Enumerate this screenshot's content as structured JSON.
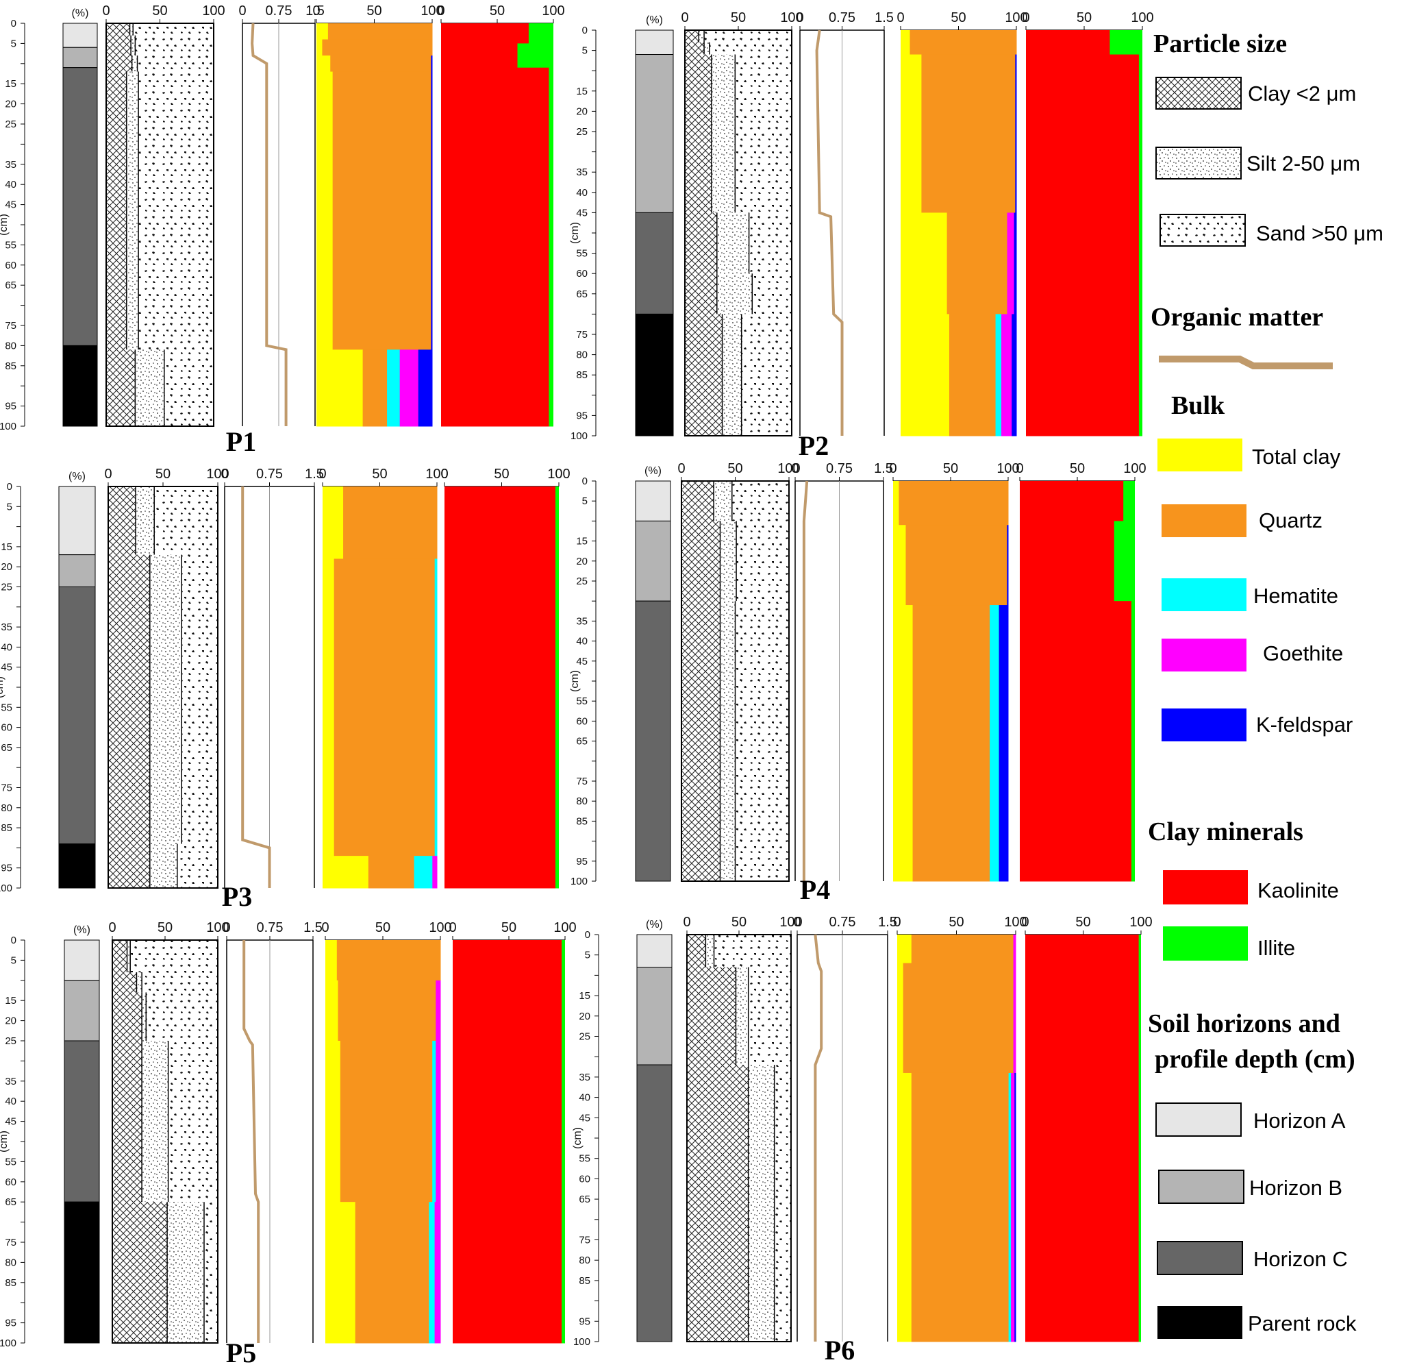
{
  "colors": {
    "horizon_A": "#e6e6e6",
    "horizon_B": "#b4b4b4",
    "horizon_C": "#666666",
    "parent_rock": "#000000",
    "organic_matter": "#c09a6b",
    "total_clay": "#ffff00",
    "quartz": "#f7941d",
    "hematite": "#00ffff",
    "goethite": "#ff00ff",
    "k_feldspar": "#0000ff",
    "kaolinite": "#ff0000",
    "illite": "#00ff00"
  },
  "axes": {
    "percent_unit": "(%)",
    "depth_unit": "(cm)",
    "percent_ticks": [
      "0",
      "50",
      "100"
    ],
    "om_ticks": [
      "0",
      "0.75",
      "1.5"
    ],
    "depth_ticks": [
      "0",
      "5",
      "15",
      "20",
      "25",
      "35",
      "40",
      "45",
      "55",
      "60",
      "65",
      "75",
      "80",
      "85",
      "95",
      "100"
    ]
  },
  "legend": {
    "particle_size": {
      "title": "Particle size",
      "items": [
        {
          "key": "clay",
          "label": "Clay <2 μm",
          "pattern": "crosshatch"
        },
        {
          "key": "silt",
          "label": "Silt 2-50 μm",
          "pattern": "fine-dots"
        },
        {
          "key": "sand",
          "label": "Sand >50 μm",
          "pattern": "coarse-dots"
        }
      ]
    },
    "organic_matter": {
      "title": "Organic matter"
    },
    "bulk": {
      "title": "Bulk",
      "items": [
        {
          "key": "total_clay",
          "label": "Total clay",
          "color": "#ffff00"
        },
        {
          "key": "quartz",
          "label": "Quartz",
          "color": "#f7941d"
        },
        {
          "key": "hematite",
          "label": "Hematite",
          "color": "#00ffff"
        },
        {
          "key": "goethite",
          "label": "Goethite",
          "color": "#ff00ff"
        },
        {
          "key": "k_feldspar",
          "label": "K-feldspar",
          "color": "#0000ff"
        }
      ]
    },
    "clay_minerals": {
      "title": "Clay minerals",
      "items": [
        {
          "key": "kaolinite",
          "label": "Kaolinite",
          "color": "#ff0000"
        },
        {
          "key": "illite",
          "label": "Illite",
          "color": "#00ff00"
        }
      ]
    },
    "soil_horizons": {
      "title_line1": "Soil horizons and",
      "title_line2": "profile depth (cm)",
      "items": [
        {
          "key": "A",
          "label": "Horizon A",
          "color": "#e6e6e6"
        },
        {
          "key": "B",
          "label": "Horizon B",
          "color": "#b4b4b4"
        },
        {
          "key": "C",
          "label": "Horizon C",
          "color": "#666666"
        },
        {
          "key": "R",
          "label": "Parent rock",
          "color": "#000000"
        }
      ]
    }
  },
  "chart_data": [
    {
      "type": "area",
      "profile": "P1",
      "depth_range_cm": [
        0,
        100
      ],
      "horizons": [
        {
          "key": "A",
          "from": 0,
          "to": 6
        },
        {
          "key": "B",
          "from": 6,
          "to": 11
        },
        {
          "key": "C",
          "from": 11,
          "to": 80
        },
        {
          "key": "R",
          "from": 80,
          "to": 100
        }
      ],
      "particle_size": [
        {
          "from": 0,
          "to": 3,
          "clay": 22,
          "silt": 3
        },
        {
          "from": 3,
          "to": 8,
          "clay": 23,
          "silt": 4
        },
        {
          "from": 8,
          "to": 12,
          "clay": 24,
          "silt": 5
        },
        {
          "from": 12,
          "to": 81,
          "clay": 19,
          "silt": 11
        },
        {
          "from": 81,
          "to": 100,
          "clay": 27,
          "silt": 27
        }
      ],
      "organic_matter": [
        [
          0,
          0.22
        ],
        [
          5,
          0.2
        ],
        [
          8,
          0.22
        ],
        [
          10,
          0.5
        ],
        [
          80,
          0.5
        ],
        [
          81,
          0.9
        ],
        [
          100,
          0.9
        ]
      ],
      "bulk": [
        {
          "from": 0,
          "to": 4,
          "total_clay": 10,
          "quartz": 90,
          "hematite": 0,
          "goethite": 0,
          "k_feldspar": 0
        },
        {
          "from": 4,
          "to": 8,
          "total_clay": 5,
          "quartz": 95,
          "hematite": 0,
          "goethite": 0,
          "k_feldspar": 0
        },
        {
          "from": 8,
          "to": 12,
          "total_clay": 12,
          "quartz": 87,
          "hematite": 0,
          "goethite": 0,
          "k_feldspar": 1
        },
        {
          "from": 12,
          "to": 81,
          "total_clay": 14,
          "quartz": 85,
          "hematite": 0,
          "goethite": 0,
          "k_feldspar": 1
        },
        {
          "from": 81,
          "to": 100,
          "total_clay": 40,
          "quartz": 21,
          "hematite": 11,
          "goethite": 16,
          "k_feldspar": 12
        }
      ],
      "clay_minerals": [
        {
          "from": 0,
          "to": 5,
          "kaolinite": 78,
          "illite": 22
        },
        {
          "from": 5,
          "to": 11,
          "kaolinite": 68,
          "illite": 32
        },
        {
          "from": 11,
          "to": 100,
          "kaolinite": 96,
          "illite": 4
        }
      ]
    },
    {
      "type": "area",
      "profile": "P2",
      "depth_range_cm": [
        0,
        100
      ],
      "horizons": [
        {
          "key": "A",
          "from": 0,
          "to": 6
        },
        {
          "key": "B",
          "from": 6,
          "to": 45
        },
        {
          "key": "C",
          "from": 45,
          "to": 70
        },
        {
          "key": "R",
          "from": 70,
          "to": 100
        }
      ],
      "particle_size": [
        {
          "from": 0,
          "to": 3,
          "clay": 13,
          "silt": 5
        },
        {
          "from": 3,
          "to": 6,
          "clay": 18,
          "silt": 5
        },
        {
          "from": 6,
          "to": 45,
          "clay": 25,
          "silt": 22
        },
        {
          "from": 45,
          "to": 60,
          "clay": 30,
          "silt": 30
        },
        {
          "from": 60,
          "to": 70,
          "clay": 30,
          "silt": 33
        },
        {
          "from": 70,
          "to": 100,
          "clay": 35,
          "silt": 18
        }
      ],
      "organic_matter": [
        [
          0,
          0.35
        ],
        [
          5,
          0.3
        ],
        [
          45,
          0.35
        ],
        [
          46,
          0.55
        ],
        [
          70,
          0.6
        ],
        [
          72,
          0.75
        ],
        [
          100,
          0.75
        ]
      ],
      "bulk": [
        {
          "from": 0,
          "to": 6,
          "total_clay": 8,
          "quartz": 92,
          "hematite": 0,
          "goethite": 0,
          "k_feldspar": 0
        },
        {
          "from": 6,
          "to": 45,
          "total_clay": 18,
          "quartz": 81,
          "hematite": 0,
          "goethite": 0,
          "k_feldspar": 1
        },
        {
          "from": 45,
          "to": 70,
          "total_clay": 40,
          "quartz": 52,
          "hematite": 0,
          "goethite": 6,
          "k_feldspar": 2
        },
        {
          "from": 70,
          "to": 100,
          "total_clay": 42,
          "quartz": 40,
          "hematite": 5,
          "goethite": 9,
          "k_feldspar": 4
        }
      ],
      "clay_minerals": [
        {
          "from": 0,
          "to": 6,
          "kaolinite": 72,
          "illite": 28
        },
        {
          "from": 6,
          "to": 100,
          "kaolinite": 97,
          "illite": 3
        }
      ]
    },
    {
      "type": "area",
      "profile": "P3",
      "depth_range_cm": [
        0,
        100
      ],
      "horizons": [
        {
          "key": "A",
          "from": 0,
          "to": 17
        },
        {
          "key": "B",
          "from": 17,
          "to": 25
        },
        {
          "key": "C",
          "from": 25,
          "to": 89
        },
        {
          "key": "R",
          "from": 89,
          "to": 100
        }
      ],
      "particle_size": [
        {
          "from": 0,
          "to": 17,
          "clay": 25,
          "silt": 17
        },
        {
          "from": 17,
          "to": 89,
          "clay": 38,
          "silt": 29
        },
        {
          "from": 89,
          "to": 100,
          "clay": 38,
          "silt": 25
        }
      ],
      "organic_matter": [
        [
          0,
          0.3
        ],
        [
          88,
          0.3
        ],
        [
          90,
          0.75
        ],
        [
          100,
          0.75
        ]
      ],
      "bulk": [
        {
          "from": 0,
          "to": 18,
          "total_clay": 18,
          "quartz": 82,
          "hematite": 0,
          "goethite": 0,
          "k_feldspar": 0
        },
        {
          "from": 18,
          "to": 92,
          "total_clay": 10,
          "quartz": 88,
          "hematite": 2,
          "goethite": 0,
          "k_feldspar": 0
        },
        {
          "from": 92,
          "to": 100,
          "total_clay": 40,
          "quartz": 40,
          "hematite": 16,
          "goethite": 4,
          "k_feldspar": 0
        }
      ],
      "clay_minerals": [
        {
          "from": 0,
          "to": 100,
          "kaolinite": 97,
          "illite": 3
        }
      ]
    },
    {
      "type": "area",
      "profile": "P4",
      "depth_range_cm": [
        0,
        100
      ],
      "horizons": [
        {
          "key": "A",
          "from": 0,
          "to": 10
        },
        {
          "key": "B",
          "from": 10,
          "to": 30
        },
        {
          "key": "C",
          "from": 30,
          "to": 100
        }
      ],
      "particle_size": [
        {
          "from": 0,
          "to": 10,
          "clay": 30,
          "silt": 17
        },
        {
          "from": 10,
          "to": 30,
          "clay": 36,
          "silt": 15
        },
        {
          "from": 30,
          "to": 100,
          "clay": 36,
          "silt": 14
        }
      ],
      "organic_matter": [
        [
          0,
          0.2
        ],
        [
          10,
          0.15
        ],
        [
          13,
          0.15
        ],
        [
          100,
          0.15
        ]
      ],
      "bulk": [
        {
          "from": 0,
          "to": 11,
          "total_clay": 5,
          "quartz": 95,
          "hematite": 0,
          "goethite": 0,
          "k_feldspar": 0
        },
        {
          "from": 11,
          "to": 31,
          "total_clay": 11,
          "quartz": 88,
          "hematite": 0,
          "goethite": 0,
          "k_feldspar": 1
        },
        {
          "from": 31,
          "to": 100,
          "total_clay": 17,
          "quartz": 67,
          "hematite": 8,
          "goethite": 0,
          "k_feldspar": 8
        }
      ],
      "clay_minerals": [
        {
          "from": 0,
          "to": 10,
          "kaolinite": 90,
          "illite": 10
        },
        {
          "from": 10,
          "to": 30,
          "kaolinite": 82,
          "illite": 18
        },
        {
          "from": 30,
          "to": 100,
          "kaolinite": 97,
          "illite": 3
        }
      ]
    },
    {
      "type": "area",
      "profile": "P5",
      "depth_range_cm": [
        0,
        100
      ],
      "horizons": [
        {
          "key": "A",
          "from": 0,
          "to": 10
        },
        {
          "key": "B",
          "from": 10,
          "to": 25
        },
        {
          "key": "C",
          "from": 25,
          "to": 65
        },
        {
          "key": "R",
          "from": 65,
          "to": 100
        }
      ],
      "particle_size": [
        {
          "from": 0,
          "to": 8,
          "clay": 14,
          "silt": 3
        },
        {
          "from": 8,
          "to": 13,
          "clay": 23,
          "silt": 5
        },
        {
          "from": 13,
          "to": 25,
          "clay": 28,
          "silt": 4
        },
        {
          "from": 25,
          "to": 65,
          "clay": 28,
          "silt": 25
        },
        {
          "from": 65,
          "to": 100,
          "clay": 52,
          "silt": 35
        }
      ],
      "organic_matter": [
        [
          0,
          0.3
        ],
        [
          22,
          0.3
        ],
        [
          25,
          0.4
        ],
        [
          26,
          0.45
        ],
        [
          63,
          0.5
        ],
        [
          65,
          0.55
        ],
        [
          100,
          0.55
        ]
      ],
      "bulk": [
        {
          "from": 0,
          "to": 10,
          "total_clay": 10,
          "quartz": 90,
          "hematite": 0,
          "goethite": 0,
          "k_feldspar": 0
        },
        {
          "from": 10,
          "to": 25,
          "total_clay": 11,
          "quartz": 85,
          "hematite": 0,
          "goethite": 4,
          "k_feldspar": 0
        },
        {
          "from": 25,
          "to": 65,
          "total_clay": 13,
          "quartz": 80,
          "hematite": 3,
          "goethite": 4,
          "k_feldspar": 0
        },
        {
          "from": 65,
          "to": 100,
          "total_clay": 26,
          "quartz": 64,
          "hematite": 5,
          "goethite": 5,
          "k_feldspar": 0
        }
      ],
      "clay_minerals": [
        {
          "from": 0,
          "to": 100,
          "kaolinite": 97,
          "illite": 3
        }
      ]
    },
    {
      "type": "area",
      "profile": "P6",
      "depth_range_cm": [
        0,
        100
      ],
      "horizons": [
        {
          "key": "A",
          "from": 0,
          "to": 8
        },
        {
          "key": "B",
          "from": 8,
          "to": 32
        },
        {
          "key": "C",
          "from": 32,
          "to": 100
        }
      ],
      "particle_size": [
        {
          "from": 0,
          "to": 8,
          "clay": 18,
          "silt": 8
        },
        {
          "from": 8,
          "to": 32,
          "clay": 47,
          "silt": 12
        },
        {
          "from": 32,
          "to": 100,
          "clay": 59,
          "silt": 25
        }
      ],
      "organic_matter": [
        [
          0,
          0.3
        ],
        [
          7,
          0.35
        ],
        [
          9,
          0.4
        ],
        [
          28,
          0.4
        ],
        [
          32,
          0.3
        ],
        [
          100,
          0.3
        ]
      ],
      "bulk": [
        {
          "from": 0,
          "to": 7,
          "total_clay": 12,
          "quartz": 86,
          "hematite": 0,
          "goethite": 2,
          "k_feldspar": 0
        },
        {
          "from": 7,
          "to": 34,
          "total_clay": 5,
          "quartz": 93,
          "hematite": 0,
          "goethite": 2,
          "k_feldspar": 0
        },
        {
          "from": 34,
          "to": 100,
          "total_clay": 12,
          "quartz": 82,
          "hematite": 2,
          "goethite": 3,
          "k_feldspar": 1
        }
      ],
      "clay_minerals": [
        {
          "from": 0,
          "to": 100,
          "kaolinite": 98,
          "illite": 2
        }
      ]
    }
  ]
}
